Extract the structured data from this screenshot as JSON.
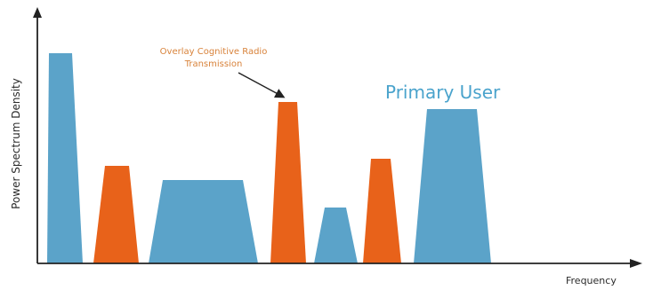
{
  "diagram": {
    "y_axis_label": "Power Spectrum Density",
    "x_axis_label": "Frequency",
    "annotation": {
      "line1": "Overlay Cognitive Radio",
      "line2": "Transmission"
    },
    "primary_label": "Primary User",
    "colors": {
      "primary": "#5ba3c9",
      "secondary": "#e8621a",
      "annotation_text": "#d8823a",
      "primary_label_text": "#4aa3cc",
      "axis": "#222222"
    },
    "blocks": [
      {
        "kind": "primary-user",
        "order": 1
      },
      {
        "kind": "cognitive-radio",
        "order": 2
      },
      {
        "kind": "primary-user",
        "order": 3
      },
      {
        "kind": "cognitive-radio",
        "order": 4
      },
      {
        "kind": "primary-user",
        "order": 5
      },
      {
        "kind": "cognitive-radio",
        "order": 6
      },
      {
        "kind": "primary-user",
        "order": 7
      }
    ]
  }
}
